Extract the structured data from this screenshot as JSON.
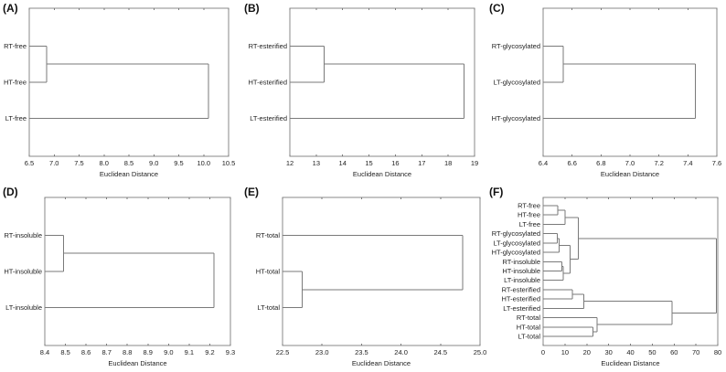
{
  "figure": {
    "panels": [
      {
        "letter": "(A)",
        "xlabel": "Euclidean Distance"
      },
      {
        "letter": "(B)",
        "xlabel": "Euclidean Distance"
      },
      {
        "letter": "(C)",
        "xlabel": "Euclidean Distance"
      },
      {
        "letter": "(D)",
        "xlabel": "Euclidean Distance"
      },
      {
        "letter": "(E)",
        "xlabel": "Euclidean Distance"
      },
      {
        "letter": "(F)",
        "xlabel": "Euclidean Distance"
      }
    ]
  },
  "chart_data": [
    {
      "type": "dendrogram",
      "panel": "(A)",
      "title": "",
      "xlabel": "Euclidean Distance",
      "xlim": [
        6.5,
        10.5
      ],
      "xticks": [
        6.5,
        7.0,
        7.5,
        8.0,
        8.5,
        9.0,
        9.5,
        10.0,
        10.5
      ],
      "xtick_labels": [
        "6.5",
        "7.0",
        "7.5",
        "8.0",
        "8.5",
        "9.0",
        "9.5",
        "10.0",
        "10.5"
      ],
      "leaves": [
        "RT-free",
        "HT-free",
        "LT-free"
      ],
      "merges": [
        {
          "items": [
            "RT-free",
            "HT-free"
          ],
          "distance": 6.85
        },
        {
          "items": [
            "RT-free+HT-free",
            "LT-free"
          ],
          "distance": 10.1
        }
      ]
    },
    {
      "type": "dendrogram",
      "panel": "(B)",
      "xlabel": "Euclidean Distance",
      "xlim": [
        12,
        19
      ],
      "xticks": [
        12,
        13,
        14,
        15,
        16,
        17,
        18,
        19
      ],
      "xtick_labels": [
        "12",
        "13",
        "14",
        "15",
        "16",
        "17",
        "18",
        "19"
      ],
      "leaves": [
        "RT-esterified",
        "HT-esterified",
        "LT-esterified"
      ],
      "merges": [
        {
          "items": [
            "RT-esterified",
            "HT-esterified"
          ],
          "distance": 13.3
        },
        {
          "items": [
            "RT-esterified+HT-esterified",
            "LT-esterified"
          ],
          "distance": 18.6
        }
      ]
    },
    {
      "type": "dendrogram",
      "panel": "(C)",
      "xlabel": "Euclidean Distance",
      "xlim": [
        6.4,
        7.6
      ],
      "xticks": [
        6.4,
        6.6,
        6.8,
        7.0,
        7.2,
        7.4,
        7.6
      ],
      "xtick_labels": [
        "6.4",
        "6.6",
        "6.8",
        "7.0",
        "7.2",
        "7.4",
        "7.6"
      ],
      "leaves": [
        "RT-glycosylated",
        "LT-glycosylated",
        "HT-glycosylated"
      ],
      "merges": [
        {
          "items": [
            "RT-glycosylated",
            "LT-glycosylated"
          ],
          "distance": 6.54
        },
        {
          "items": [
            "RT-glycosylated+LT-glycosylated",
            "HT-glycosylated"
          ],
          "distance": 7.45
        }
      ]
    },
    {
      "type": "dendrogram",
      "panel": "(D)",
      "xlabel": "Euclidean Distance",
      "xlim": [
        8.4,
        9.3
      ],
      "xticks": [
        8.4,
        8.5,
        8.6,
        8.7,
        8.8,
        8.9,
        9.0,
        9.1,
        9.2,
        9.3
      ],
      "xtick_labels": [
        "8.4",
        "8.5",
        "8.6",
        "8.7",
        "8.8",
        "8.9",
        "9.0",
        "9.1",
        "9.2",
        "9.3"
      ],
      "leaves": [
        "RT-insoluble",
        "HT-insoluble",
        "LT-insoluble"
      ],
      "merges": [
        {
          "items": [
            "RT-insoluble",
            "HT-insoluble"
          ],
          "distance": 8.49
        },
        {
          "items": [
            "RT-insoluble+HT-insoluble",
            "LT-insoluble"
          ],
          "distance": 9.22
        }
      ]
    },
    {
      "type": "dendrogram",
      "panel": "(E)",
      "xlabel": "Euclidean Distance",
      "xlim": [
        22.5,
        25.0
      ],
      "xticks": [
        22.5,
        23.0,
        23.5,
        24.0,
        24.5,
        25.0
      ],
      "xtick_labels": [
        "22.5",
        "23.0",
        "23.5",
        "24.0",
        "24.5",
        "25.0"
      ],
      "leaves": [
        "RT-total",
        "HT-total",
        "LT-total"
      ],
      "merges": [
        {
          "items": [
            "HT-total",
            "LT-total"
          ],
          "distance": 22.75
        },
        {
          "items": [
            "RT-total",
            "HT-total+LT-total"
          ],
          "distance": 24.78
        }
      ]
    },
    {
      "type": "dendrogram",
      "panel": "(F)",
      "xlabel": "Euclidean Distance",
      "xlim": [
        0,
        80
      ],
      "xticks": [
        0,
        10,
        20,
        30,
        40,
        50,
        60,
        70,
        80
      ],
      "xtick_labels": [
        "0",
        "10",
        "20",
        "30",
        "40",
        "50",
        "60",
        "70",
        "80"
      ],
      "leaves": [
        "RT-free",
        "HT-free",
        "LT-free",
        "RT-glycosylated",
        "LT-glycosylated",
        "HT-glycosylated",
        "RT-insoluble",
        "HT-insoluble",
        "LT-insoluble",
        "RT-esterified",
        "HT-esterified",
        "LT-esterified",
        "RT-total",
        "HT-total",
        "LT-total"
      ],
      "merges": [
        {
          "items": [
            "RT-free",
            "HT-free"
          ],
          "distance": 6.8
        },
        {
          "items": [
            "RT-free+HT-free",
            "LT-free"
          ],
          "distance": 10.1
        },
        {
          "items": [
            "RT-glycosylated",
            "LT-glycosylated"
          ],
          "distance": 6.5
        },
        {
          "items": [
            "RT-glycosylated+LT-glycosylated",
            "HT-glycosylated"
          ],
          "distance": 7.4
        },
        {
          "items": [
            "RT-insoluble",
            "HT-insoluble"
          ],
          "distance": 8.5
        },
        {
          "items": [
            "RT-insoluble+HT-insoluble",
            "LT-insoluble"
          ],
          "distance": 9.2
        },
        {
          "items": [
            "glycosylated",
            "insoluble"
          ],
          "distance": 12.3
        },
        {
          "items": [
            "free",
            "glycosylated+insoluble"
          ],
          "distance": 16.2
        },
        {
          "items": [
            "RT-esterified",
            "HT-esterified"
          ],
          "distance": 13.3
        },
        {
          "items": [
            "RT-esterified+HT-esterified",
            "LT-esterified"
          ],
          "distance": 18.6
        },
        {
          "items": [
            "HT-total",
            "LT-total"
          ],
          "distance": 22.8
        },
        {
          "items": [
            "RT-total",
            "HT-total+LT-total"
          ],
          "distance": 24.8
        },
        {
          "items": [
            "esterified",
            "total"
          ],
          "distance": 59.0
        },
        {
          "items": [
            "free+glycosylated+insoluble",
            "esterified+total"
          ],
          "distance": 79.3
        }
      ]
    }
  ]
}
